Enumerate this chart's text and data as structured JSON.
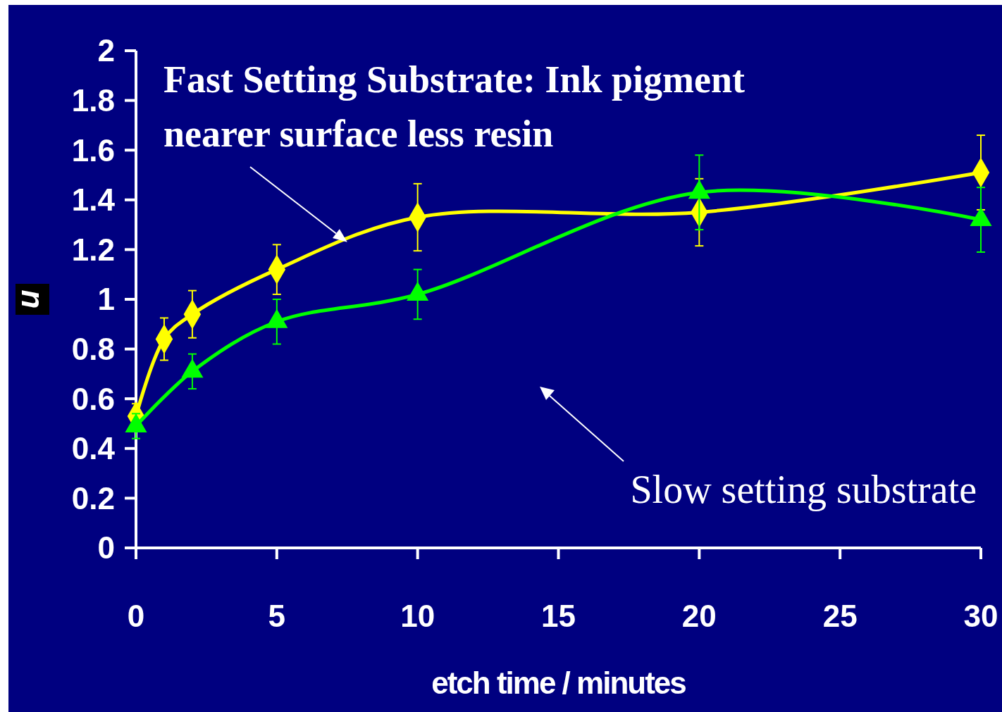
{
  "chart_data": {
    "type": "line",
    "xlabel": "etch time / minutes",
    "ylabel": "n",
    "xlim": [
      0,
      30
    ],
    "xticks": [
      0,
      5,
      10,
      15,
      20,
      25,
      30
    ],
    "ylim": [
      0,
      2
    ],
    "yticks": [
      0,
      0.2,
      0.4,
      0.6,
      0.8,
      1,
      1.2,
      1.4,
      1.6,
      1.8,
      2
    ],
    "grid": false,
    "annotations": [
      {
        "text": "Fast Setting Substrate: Ink pigment nearer surface less resin",
        "x": 7.5,
        "y": 1.23
      },
      "Slow setting substrate"
    ],
    "series": [
      {
        "color": "#ffff00",
        "marker": "diamond",
        "x": [
          0,
          1,
          2,
          5,
          10,
          20,
          30
        ],
        "values": [
          0.53,
          0.84,
          0.94,
          1.12,
          1.33,
          1.35,
          1.51
        ],
        "errors": [
          0.05,
          0.085,
          0.095,
          0.1,
          0.135,
          0.135,
          0.15
        ]
      },
      {
        "color": "#00ff00",
        "marker": "triangle",
        "x": [
          0,
          2,
          5,
          10,
          20,
          30
        ],
        "values": [
          0.49,
          0.71,
          0.91,
          1.02,
          1.43,
          1.32
        ],
        "errors": [
          0.05,
          0.07,
          0.09,
          0.1,
          0.15,
          0.13
        ]
      }
    ]
  }
}
